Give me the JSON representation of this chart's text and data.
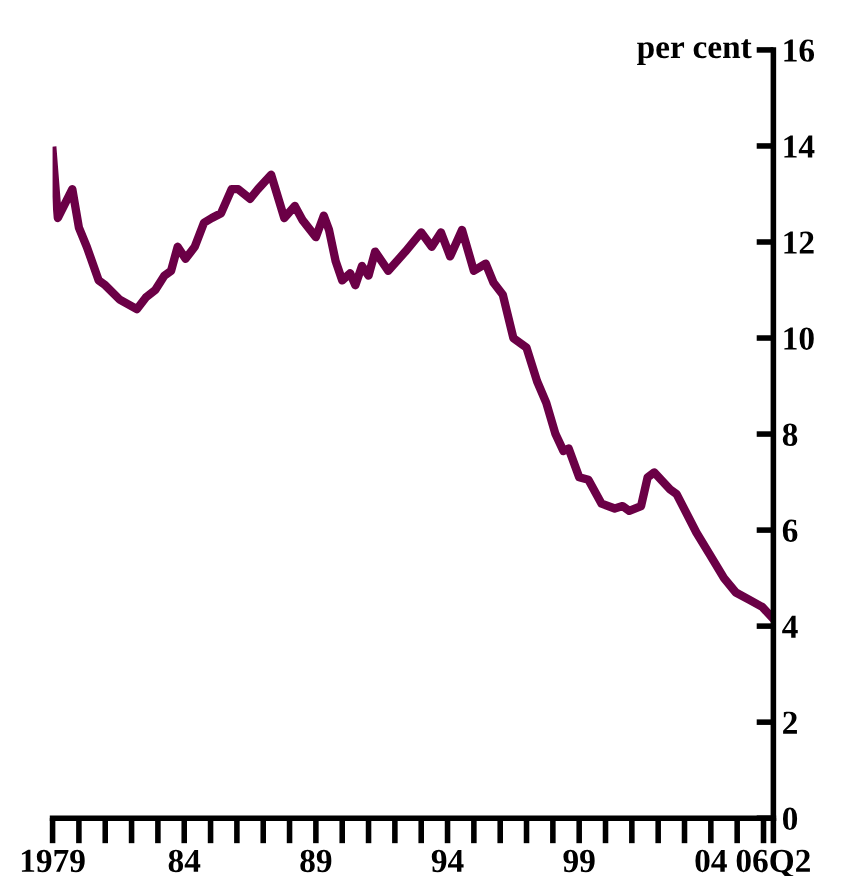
{
  "chart_data": {
    "type": "line",
    "ylabel": "per cent",
    "color": "#6b0046",
    "x": [
      1979.0,
      1979.2,
      1979.75,
      1980.0,
      1980.3,
      1980.75,
      1981.0,
      1981.55,
      1982.2,
      1982.55,
      1982.9,
      1983.25,
      1983.5,
      1983.75,
      1984.05,
      1984.4,
      1984.75,
      1985.05,
      1985.4,
      1985.8,
      1986.05,
      1986.5,
      1986.8,
      1987.3,
      1987.8,
      1988.2,
      1988.5,
      1989.0,
      1989.3,
      1989.5,
      1989.75,
      1990.0,
      1990.3,
      1990.5,
      1990.75,
      1991.0,
      1991.25,
      1991.75,
      1992.4,
      1993.0,
      1993.4,
      1993.75,
      1994.1,
      1994.55,
      1995.0,
      1995.45,
      1995.75,
      1996.1,
      1996.5,
      1997.0,
      1997.4,
      1997.75,
      1998.1,
      1998.4,
      1998.6,
      1999.0,
      1999.35,
      1999.85,
      2000.35,
      2000.65,
      2000.9,
      2001.35,
      2001.6,
      2001.85,
      2002.45,
      2002.7,
      2003.45,
      2003.95,
      2004.5,
      2004.95,
      2005.45,
      2005.95,
      2006.375
    ],
    "values": [
      13.9,
      12.5,
      13.1,
      12.3,
      11.9,
      11.2,
      11.1,
      10.8,
      10.6,
      10.85,
      11.0,
      11.3,
      11.4,
      11.9,
      11.65,
      11.9,
      12.4,
      12.5,
      12.6,
      13.1,
      13.1,
      12.9,
      13.1,
      13.4,
      12.5,
      12.75,
      12.45,
      12.1,
      12.55,
      12.25,
      11.6,
      11.2,
      11.35,
      11.1,
      11.5,
      11.3,
      11.8,
      11.4,
      11.8,
      12.2,
      11.9,
      12.2,
      11.7,
      12.25,
      11.4,
      11.55,
      11.15,
      10.9,
      10.0,
      9.8,
      9.1,
      8.65,
      8.0,
      7.65,
      7.7,
      7.1,
      7.05,
      6.55,
      6.45,
      6.5,
      6.4,
      6.5,
      7.1,
      7.2,
      6.85,
      6.75,
      5.95,
      5.5,
      5.0,
      4.7,
      4.55,
      4.4,
      4.15
    ],
    "xlim": [
      1979,
      2006.375
    ],
    "ylim": [
      0,
      16
    ],
    "xticks": [
      1979,
      {
        "value": 1980,
        "label": null
      },
      {
        "value": 1981,
        "label": null
      },
      {
        "value": 1982,
        "label": null
      },
      {
        "value": 1983,
        "label": null
      },
      {
        "value": 1984,
        "label": "84"
      },
      {
        "value": 1985,
        "label": null
      },
      {
        "value": 1986,
        "label": null
      },
      {
        "value": 1987,
        "label": null
      },
      {
        "value": 1988,
        "label": null
      },
      {
        "value": 1989,
        "label": "89"
      },
      {
        "value": 1990,
        "label": null
      },
      {
        "value": 1991,
        "label": null
      },
      {
        "value": 1992,
        "label": null
      },
      {
        "value": 1993,
        "label": null
      },
      {
        "value": 1994,
        "label": "94"
      },
      {
        "value": 1995,
        "label": null
      },
      {
        "value": 1996,
        "label": null
      },
      {
        "value": 1997,
        "label": null
      },
      {
        "value": 1998,
        "label": null
      },
      {
        "value": 1999,
        "label": "99"
      },
      {
        "value": 2000,
        "label": null
      },
      {
        "value": 2001,
        "label": null
      },
      {
        "value": 2002,
        "label": null
      },
      {
        "value": 2003,
        "label": null
      },
      {
        "value": 2004,
        "label": "04"
      },
      {
        "value": 2005,
        "label": null
      },
      {
        "value": 2006,
        "label": null
      },
      {
        "value": 2006.375,
        "label": "06Q2"
      }
    ],
    "yticks": [
      0,
      2,
      4,
      6,
      8,
      10,
      12,
      14,
      16
    ],
    "grid": false,
    "legend": false,
    "line_style": "solid"
  }
}
